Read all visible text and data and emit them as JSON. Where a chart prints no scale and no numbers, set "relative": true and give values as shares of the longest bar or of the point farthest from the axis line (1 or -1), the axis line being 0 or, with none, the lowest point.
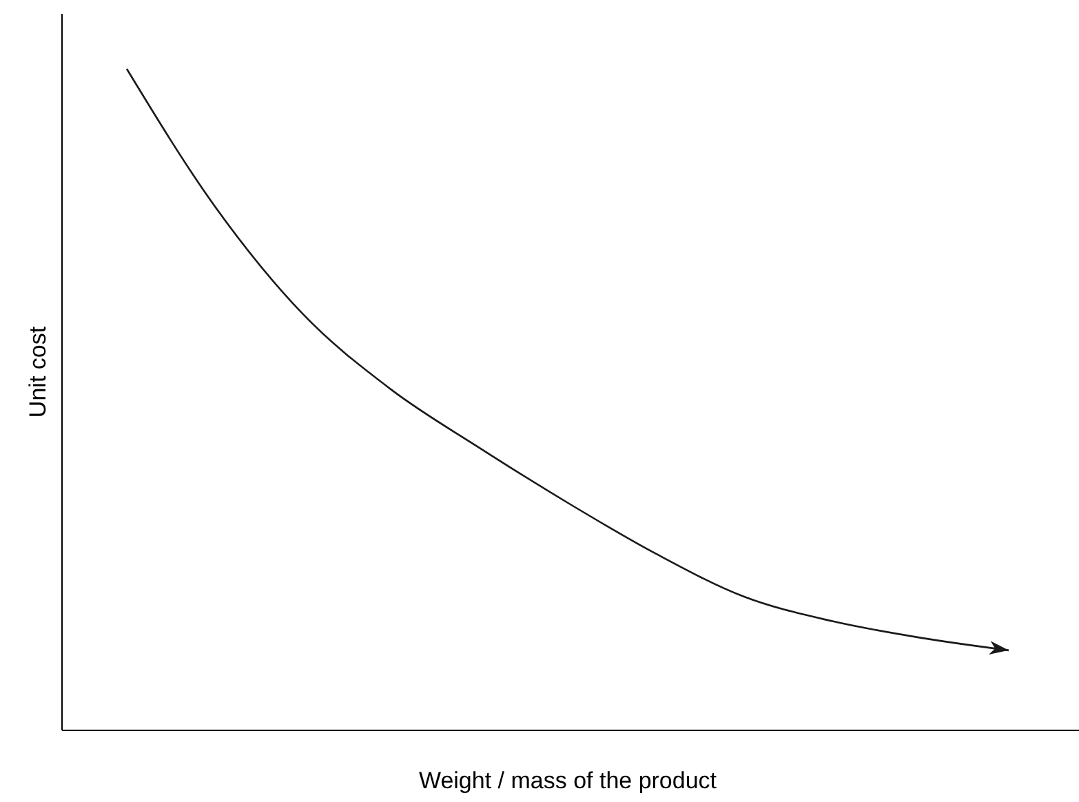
{
  "chart_data": {
    "type": "line",
    "relative": true,
    "xlabel": "Weight / mass of the product",
    "ylabel": "Unit cost",
    "categories": [
      null,
      null,
      null,
      null,
      null,
      null,
      null,
      null,
      null,
      null,
      null
    ],
    "series": [
      {
        "color": "#1a1a1a",
        "values": [
          1,
          0.792,
          0.629,
          0.515,
          0.427,
          0.344,
          0.267,
          0.202,
          0.165,
          0.14,
          0.121
        ]
      }
    ],
    "marker": "none",
    "line_style": "solid",
    "legend": false
  }
}
